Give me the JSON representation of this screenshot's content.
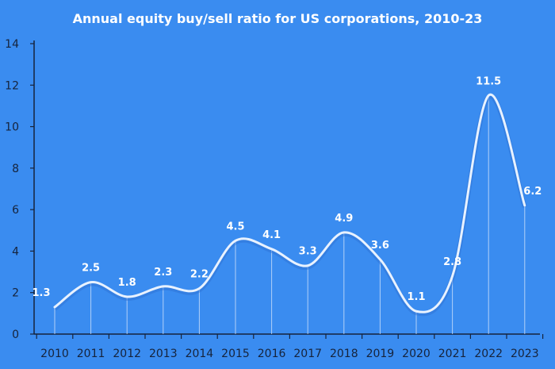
{
  "chart_data": {
    "type": "line",
    "title": "Annual equity buy/sell ratio for US corporations, 2010-23",
    "xlabel": "",
    "ylabel": "",
    "categories": [
      "2010",
      "2011",
      "2012",
      "2013",
      "2014",
      "2015",
      "2016",
      "2017",
      "2018",
      "2019",
      "2020",
      "2021",
      "2022",
      "2023"
    ],
    "series": [
      {
        "values": [
          1.3,
          2.5,
          1.8,
          2.3,
          2.2,
          4.5,
          4.1,
          3.3,
          4.9,
          3.6,
          1.1,
          2.8,
          11.5,
          6.2
        ]
      }
    ],
    "ylim": [
      0,
      14
    ],
    "yticks": [
      0,
      2,
      4,
      6,
      8,
      10,
      12,
      14
    ],
    "grid": false,
    "legend": "none",
    "colors": {
      "background": "#3a8cf0",
      "line": "#e8f2ff",
      "text": "#16233b",
      "labels": "#ffffff"
    }
  }
}
